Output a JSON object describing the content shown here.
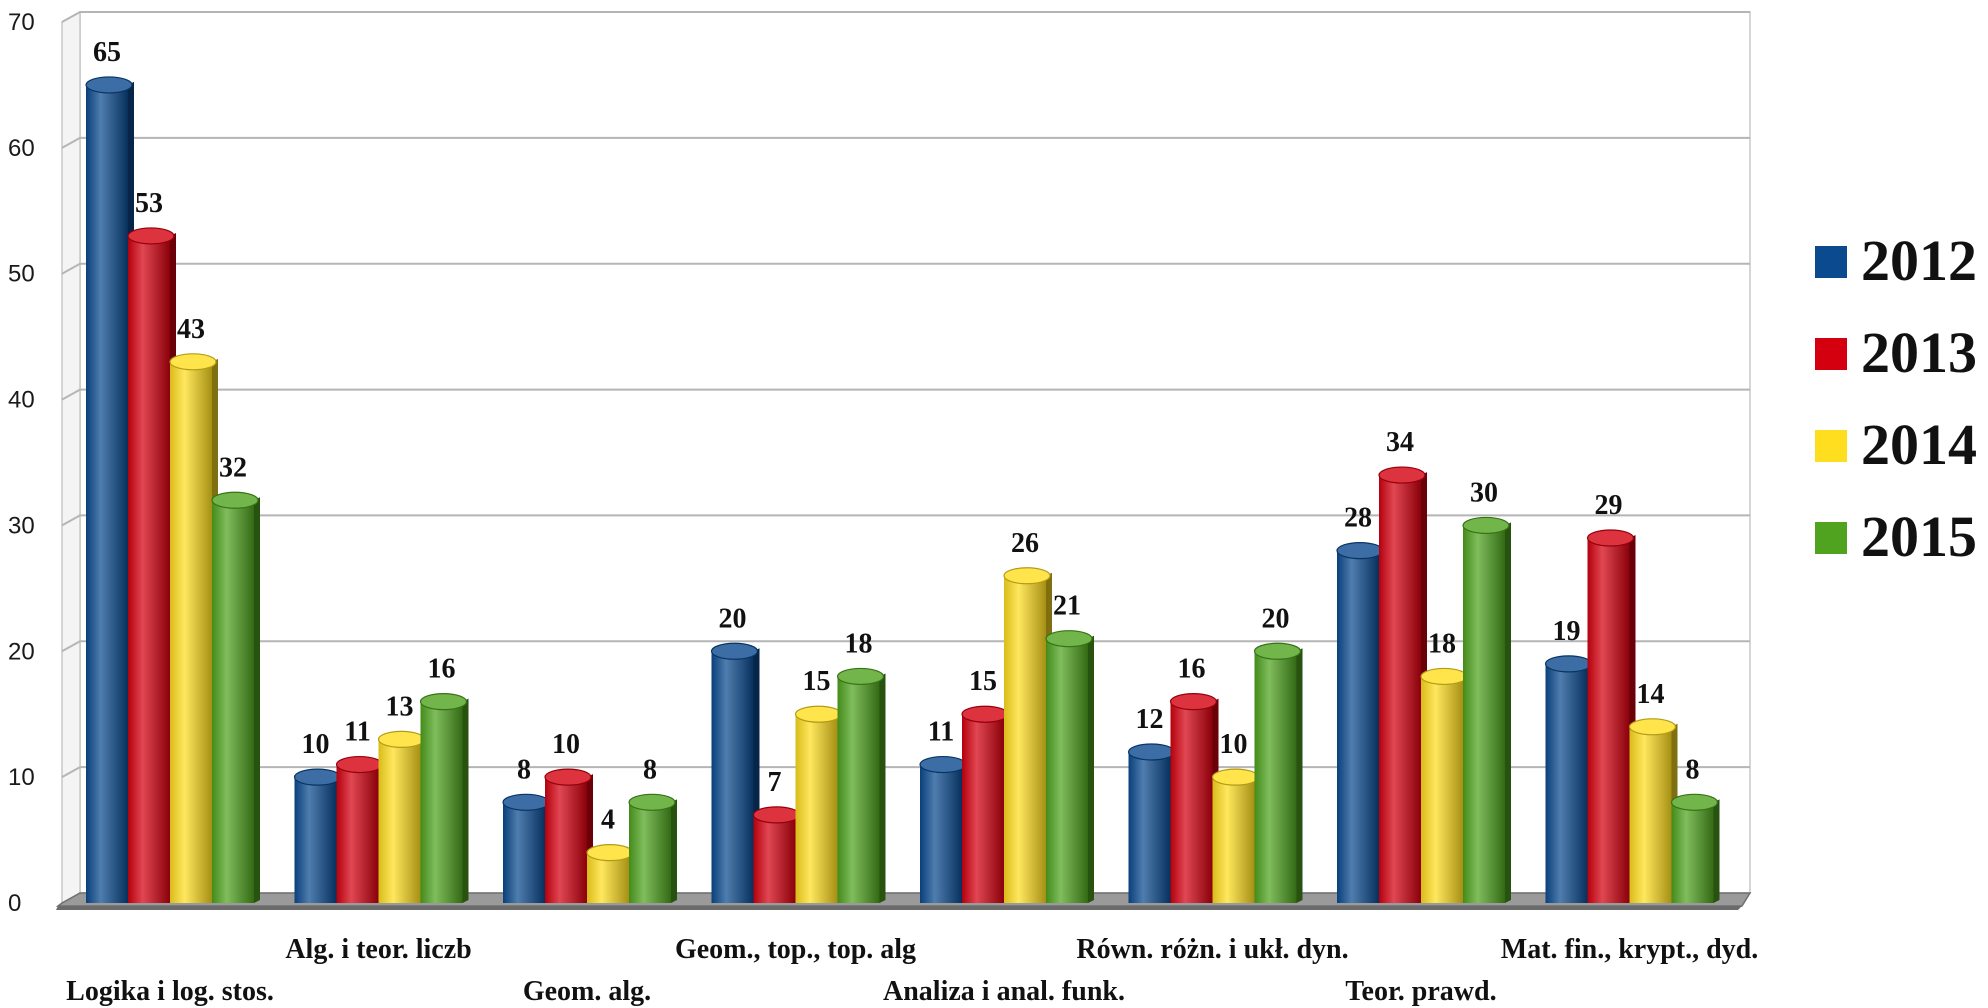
{
  "chart_data": {
    "type": "bar",
    "categories": [
      "Logika i log. stos.",
      "Alg. i teor. liczb",
      "Geom. alg.",
      "Geom., top., top. alg",
      "Analiza i anal. funk.",
      "Równ. różn. i ukł. dyn.",
      "Teor. prawd.",
      "Mat. fin., krypt., dyd."
    ],
    "series": [
      {
        "name": "2012",
        "color": "#0b4a8f",
        "values": [
          65,
          10,
          8,
          20,
          11,
          12,
          28,
          19
        ]
      },
      {
        "name": "2013",
        "color": "#d4000f",
        "values": [
          53,
          11,
          10,
          7,
          15,
          16,
          34,
          29
        ]
      },
      {
        "name": "2014",
        "color": "#ffdd1f",
        "values": [
          43,
          13,
          4,
          15,
          26,
          10,
          18,
          14
        ]
      },
      {
        "name": "2015",
        "color": "#4fa31e",
        "values": [
          32,
          16,
          8,
          18,
          21,
          20,
          30,
          8
        ]
      }
    ],
    "yticks": [
      "0",
      "10",
      "20",
      "30",
      "40",
      "50",
      "60",
      "70"
    ],
    "ylim": [
      0,
      70
    ],
    "grid": true,
    "legend_position": "right",
    "title": "",
    "xlabel": "",
    "ylabel": ""
  }
}
